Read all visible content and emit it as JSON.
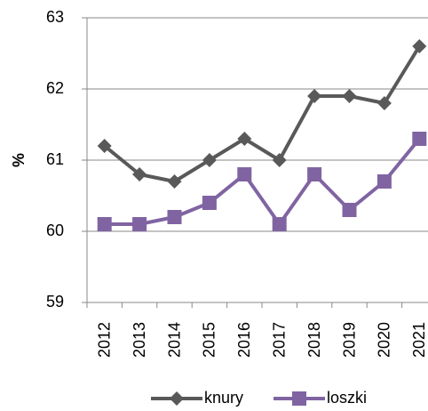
{
  "chart_data": {
    "type": "line",
    "y_label": "%",
    "categories": [
      "2012",
      "2013",
      "2014",
      "2015",
      "2016",
      "2017",
      "2018",
      "2019",
      "2020",
      "2021"
    ],
    "series": [
      {
        "name": "knury",
        "color": "#595959",
        "marker": "diamond",
        "values": [
          61.2,
          60.8,
          60.7,
          61.0,
          61.3,
          61.0,
          61.9,
          61.9,
          61.8,
          62.6
        ]
      },
      {
        "name": "loszki",
        "color": "#8064a2",
        "marker": "square",
        "values": [
          60.1,
          60.1,
          60.2,
          60.4,
          60.8,
          60.1,
          60.8,
          60.3,
          60.7,
          61.3
        ]
      }
    ],
    "ylim": [
      59,
      63
    ],
    "yticks": [
      59,
      60,
      61,
      62,
      63
    ],
    "grid": true,
    "legend": "bottom"
  }
}
